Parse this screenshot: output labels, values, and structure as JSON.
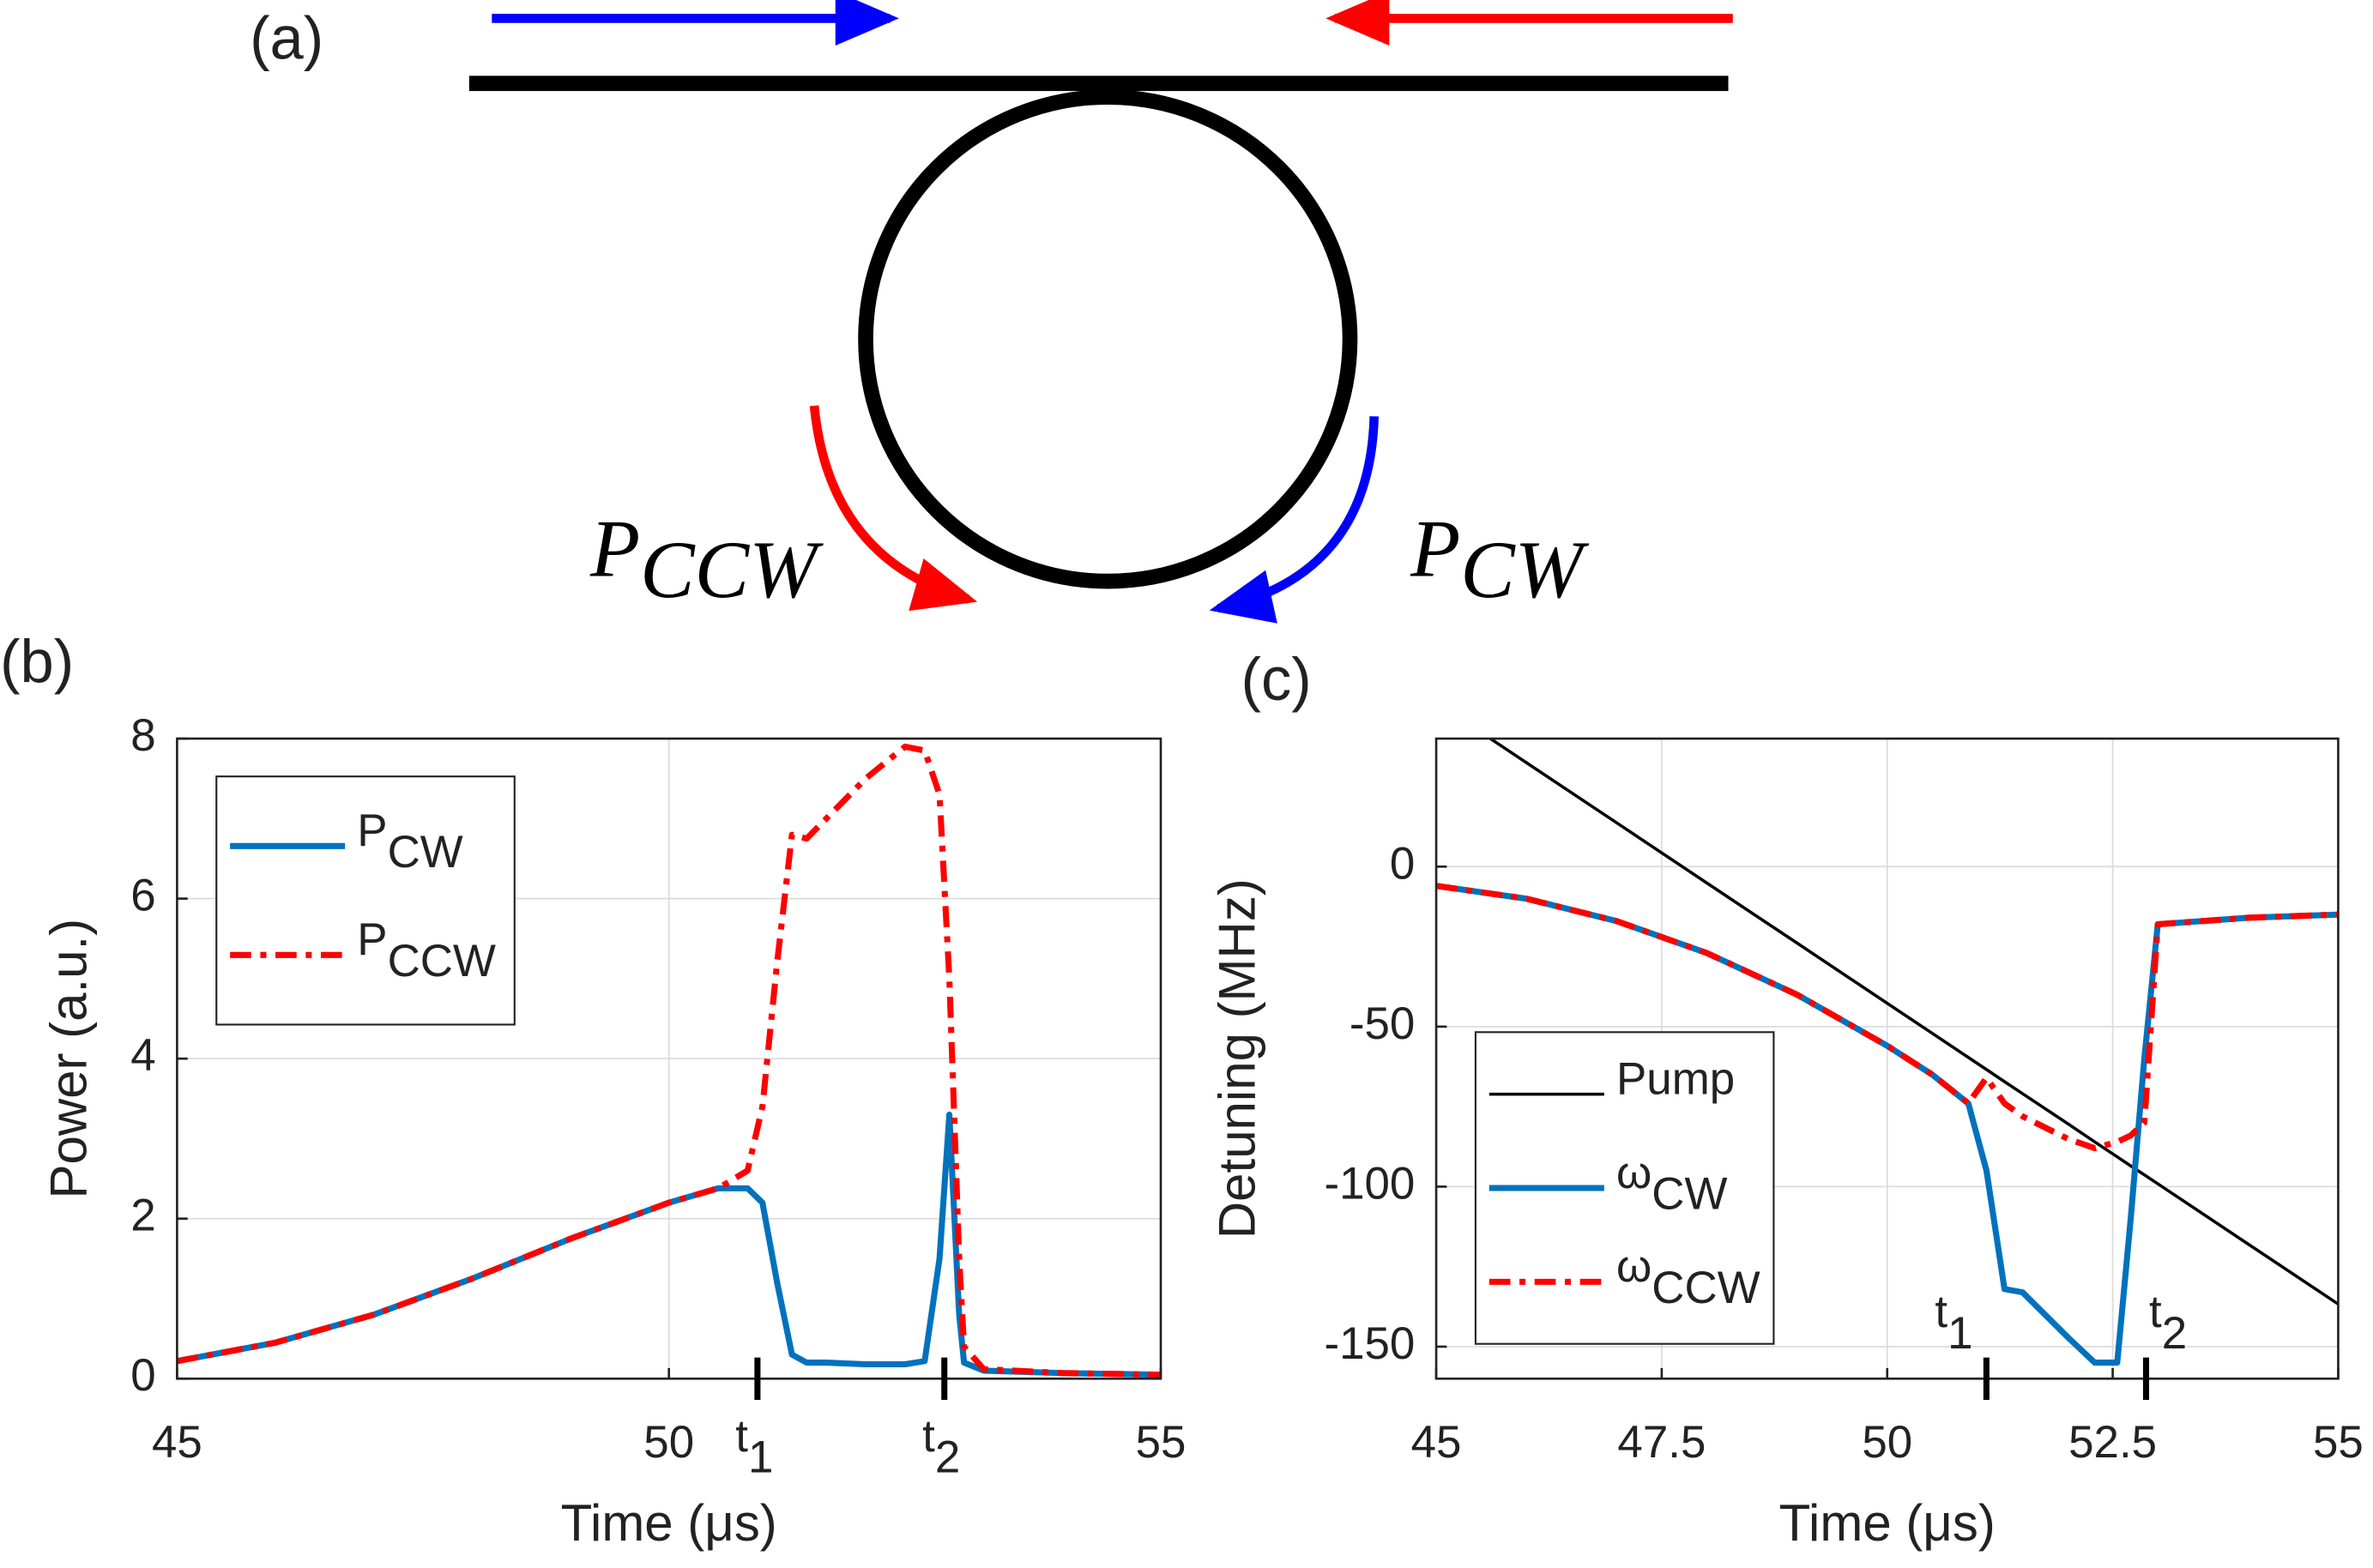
{
  "diagram": {
    "panel_label": "(a)",
    "labels": [
      {
        "text": "P",
        "sub": "CCW"
      },
      {
        "text": "P",
        "sub": "CW"
      }
    ]
  },
  "chart_data": [
    {
      "type": "line",
      "panel_label": "(b)",
      "xlabel": "Time (μs)",
      "ylabel": "Power (a.u.)",
      "x": [
        45,
        46,
        47,
        48,
        49,
        50,
        50.5,
        50.8,
        50.95,
        51.1,
        51.25,
        51.4,
        51.6,
        52,
        52.4,
        52.6,
        52.75,
        52.85,
        52.95,
        53,
        53.2,
        54,
        55
      ],
      "series": [
        {
          "name": "P",
          "subscript": "CW",
          "color": "#0072bd",
          "dash": "solid",
          "values": [
            0.22,
            0.45,
            0.8,
            1.25,
            1.75,
            2.2,
            2.38,
            2.38,
            2.2,
            1.2,
            0.3,
            0.2,
            0.2,
            0.18,
            0.18,
            0.22,
            1.5,
            3.3,
            0.8,
            0.2,
            0.1,
            0.07,
            0.05
          ]
        },
        {
          "name": "P",
          "subscript": "CCW",
          "color": "#ff0000",
          "dash": "dashdot",
          "values": [
            0.22,
            0.45,
            0.8,
            1.25,
            1.75,
            2.2,
            2.38,
            2.6,
            3.4,
            5.2,
            6.8,
            6.75,
            7.0,
            7.5,
            7.9,
            7.85,
            7.3,
            5.0,
            1.5,
            0.4,
            0.12,
            0.07,
            0.05
          ]
        }
      ],
      "xlim": [
        45,
        55
      ],
      "xticks": [
        45,
        50,
        55
      ],
      "ylim": [
        0,
        8
      ],
      "yticks": [
        0,
        2,
        4,
        6,
        8
      ],
      "grid": true,
      "legend": "upper left",
      "annotations": [
        {
          "label": "t",
          "sub": "1",
          "x": 50.9
        },
        {
          "label": "t",
          "sub": "2",
          "x": 52.8
        }
      ]
    },
    {
      "type": "line",
      "panel_label": "(c)",
      "xlabel": "Time (μs)",
      "ylabel": "Detuning (MHz)",
      "x": [
        45,
        46,
        47,
        48,
        49,
        50,
        50.5,
        50.9,
        51.1,
        51.3,
        51.5,
        52,
        52.3,
        52.55,
        52.7,
        52.85,
        53,
        54,
        55
      ],
      "series": [
        {
          "name": "Pump",
          "color": "#000000",
          "dash": "thin",
          "values": [
            51.3,
            32.5,
            13.7,
            -5.1,
            -23.9,
            -42.7,
            -52.1,
            -59.6,
            -63.4,
            -67.2,
            -70.9,
            -80.3,
            -86,
            -90.7,
            -93.5,
            -96.3,
            -99.1,
            -117.9,
            -136.7
          ]
        },
        {
          "name": "ω",
          "subscript": "CW",
          "color": "#0072bd",
          "dash": "solid",
          "values": [
            -6,
            -10,
            -17,
            -27,
            -40,
            -56,
            -65,
            -74,
            -95,
            -132,
            -133,
            -147,
            -155,
            -155,
            -110,
            -60,
            -18,
            -16,
            -15
          ]
        },
        {
          "name": "ω",
          "subscript": "CCW",
          "color": "#ff0000",
          "dash": "dashdot",
          "values": [
            -6,
            -10,
            -17,
            -27,
            -40,
            -56,
            -65,
            -74,
            -66,
            -74,
            -78,
            -85,
            -88,
            -86,
            -84,
            -80,
            -18,
            -16,
            -15
          ]
        }
      ],
      "xlim": [
        45,
        55
      ],
      "xticks": [
        45,
        47.5,
        50,
        52.5,
        55
      ],
      "ylim": [
        -160,
        40
      ],
      "yticks": [
        -150,
        -100,
        -50,
        0
      ],
      "grid": true,
      "legend": "lower left",
      "annotations": [
        {
          "label": "t",
          "sub": "1",
          "x": 51.1
        },
        {
          "label": "t",
          "sub": "2",
          "x": 52.87
        }
      ]
    }
  ]
}
